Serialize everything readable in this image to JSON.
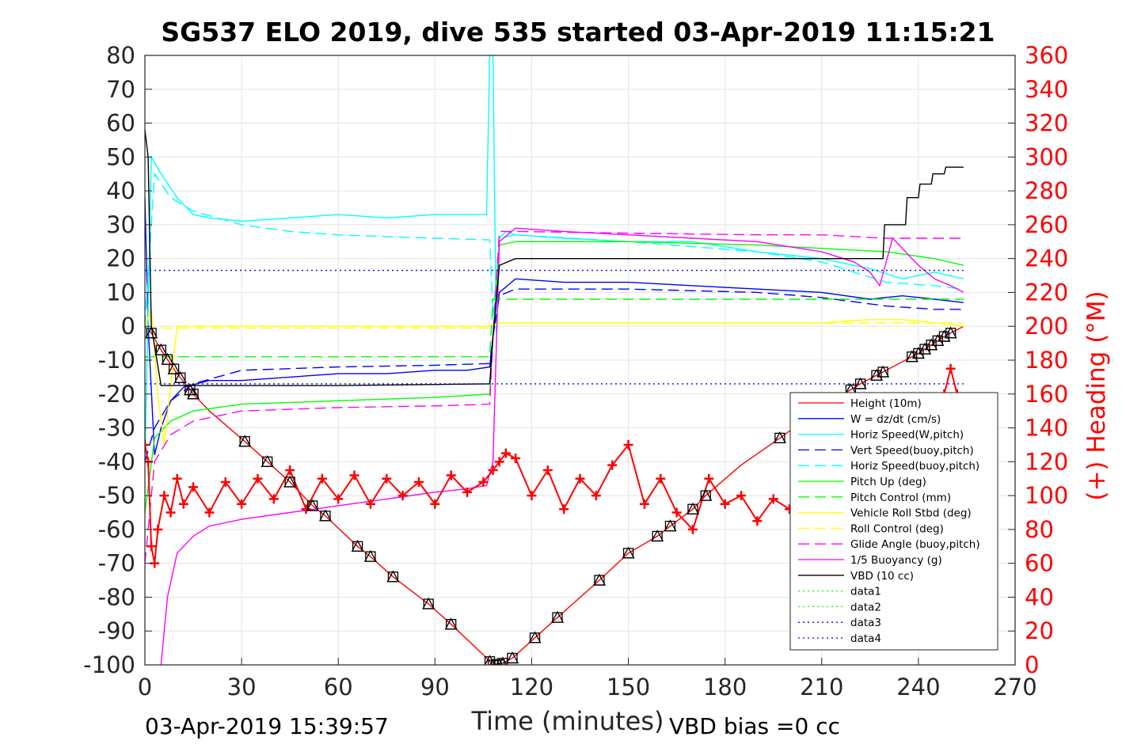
{
  "chart_data": {
    "type": "line",
    "title": "SG537 ELO 2019, dive 535 started 03-Apr-2019 11:15:21",
    "xlabel": "Time (minutes)",
    "ylabel": "",
    "ylabel_right": "(+) Heading (°M)",
    "xlim": [
      0,
      270
    ],
    "ylim": [
      -100,
      80
    ],
    "ylim_right": [
      0,
      360
    ],
    "x_ticks": [
      0,
      30,
      60,
      90,
      120,
      150,
      180,
      210,
      240,
      270
    ],
    "y_ticks": [
      80,
      70,
      60,
      50,
      40,
      30,
      20,
      10,
      0,
      -10,
      -20,
      -30,
      -40,
      -50,
      -60,
      -70,
      -80,
      -90,
      -100
    ],
    "y_ticks_right": [
      360,
      340,
      320,
      300,
      280,
      260,
      240,
      220,
      200,
      180,
      160,
      140,
      120,
      100,
      80,
      60,
      40,
      20,
      0
    ],
    "grid": true,
    "legend_position": "lower-right",
    "footer_left": "03-Apr-2019 15:39:57",
    "footer_right": "VBD bias =0 cc",
    "series": [
      {
        "name": "Height (10m)",
        "color": "#ff0000",
        "style": "solid",
        "x": [
          0,
          2,
          5,
          10,
          15,
          20,
          31,
          38,
          45,
          52,
          56,
          66,
          70,
          77,
          88,
          95,
          105,
          108,
          110,
          114,
          121,
          128,
          141,
          150,
          159,
          163,
          170,
          174,
          185,
          197,
          210,
          222,
          230,
          240,
          248,
          254
        ],
        "y": [
          0,
          -2,
          -7,
          -14,
          -20,
          -25,
          -34,
          -40,
          -46,
          -53,
          -56,
          -65,
          -68,
          -74,
          -82,
          -88,
          -97,
          -100,
          -100,
          -98,
          -92,
          -86,
          -75,
          -67,
          -62,
          -59,
          -54,
          -50,
          -41,
          -33,
          -24,
          -17,
          -13,
          -8,
          -3,
          0
        ]
      },
      {
        "name": "W = dz/dt (cm/s)",
        "color": "#0000ff",
        "style": "solid",
        "x": [
          0,
          1,
          3,
          5,
          8,
          12,
          20,
          30,
          45,
          60,
          75,
          90,
          100,
          107,
          108,
          110,
          115,
          130,
          150,
          170,
          190,
          210,
          225,
          235,
          245,
          254
        ],
        "y": [
          38,
          0,
          -38,
          -30,
          -22,
          -18,
          -16,
          -16,
          -15,
          -14,
          -14,
          -13,
          -13,
          -12,
          -3,
          10,
          14,
          13,
          13,
          12,
          11,
          10,
          8,
          9,
          8,
          7
        ]
      },
      {
        "name": "Horiz Speed(W,pitch)",
        "color": "#00ffff",
        "style": "solid",
        "x": [
          0,
          2,
          5,
          10,
          15,
          20,
          30,
          45,
          60,
          75,
          90,
          100,
          106,
          107,
          108,
          109,
          110,
          112,
          115,
          130,
          150,
          170,
          190,
          210,
          225,
          235,
          245,
          254
        ],
        "y": [
          -40,
          50,
          45,
          38,
          33,
          32,
          31,
          32,
          33,
          32,
          33,
          33,
          33,
          80,
          80,
          -2,
          26,
          28,
          27,
          26,
          25,
          25,
          22,
          20,
          17,
          14,
          16,
          14
        ]
      },
      {
        "name": "Vert Speed(buoy,pitch)",
        "color": "#0000ff",
        "style": "dash",
        "x": [
          0,
          3,
          8,
          15,
          30,
          60,
          90,
          107,
          108,
          110,
          115,
          150,
          190,
          210,
          230,
          245,
          254
        ],
        "y": [
          -40,
          -30,
          -22,
          -17,
          -13,
          -12,
          -11.5,
          -11,
          -3,
          9,
          11,
          11,
          10,
          8.5,
          6,
          5,
          5
        ]
      },
      {
        "name": "Horiz Speed(buoy,pitch)",
        "color": "#00ffff",
        "style": "dash",
        "x": [
          0,
          3,
          8,
          15,
          30,
          45,
          60,
          75,
          90,
          107,
          108,
          110,
          115,
          150,
          190,
          210,
          230,
          245,
          254
        ],
        "y": [
          0,
          45,
          38,
          34,
          30,
          28,
          27,
          26.5,
          26,
          25.5,
          3,
          26,
          27,
          25,
          22,
          19,
          13,
          12,
          11
        ]
      },
      {
        "name": "Pitch Up (deg)",
        "color": "#00ff00",
        "style": "solid",
        "x": [
          0,
          3,
          8,
          15,
          30,
          60,
          90,
          107,
          108,
          110,
          115,
          150,
          190,
          210,
          230,
          245,
          254
        ],
        "y": [
          -55,
          -33,
          -28,
          -25,
          -23,
          -22,
          -21,
          -20,
          -3,
          24,
          25,
          25,
          24,
          23,
          22,
          20,
          18
        ]
      },
      {
        "name": "Pitch Control (mm)",
        "color": "#00ff00",
        "style": "dash",
        "x": [
          0,
          5,
          30,
          60,
          90,
          107,
          108,
          110,
          150,
          200,
          254
        ],
        "y": [
          -9,
          -9,
          -9,
          -9,
          -9,
          -9,
          8,
          8,
          8,
          8,
          8
        ]
      },
      {
        "name": "Vehicle Roll Stbd (deg)",
        "color": "#ffff00",
        "style": "solid",
        "x": [
          0,
          2,
          4,
          6,
          10,
          20,
          40,
          60,
          80,
          100,
          106,
          110,
          130,
          150,
          170,
          190,
          210,
          225,
          235,
          245,
          254
        ],
        "y": [
          0,
          5,
          -20,
          -35,
          0,
          0,
          0,
          0,
          0,
          0,
          0,
          1,
          1,
          1,
          1,
          1,
          1,
          2,
          2,
          1,
          0
        ]
      },
      {
        "name": "Roll Control (deg)",
        "color": "#ffff00",
        "style": "dash",
        "x": [
          0,
          5,
          30,
          60,
          90,
          107,
          110,
          150,
          200,
          230,
          254
        ],
        "y": [
          -0.5,
          -0.5,
          -0.5,
          -0.5,
          -0.5,
          -0.5,
          1,
          1,
          1,
          1,
          1
        ]
      },
      {
        "name": "Glide Angle (buoy,pitch)",
        "color": "#ff00ff",
        "style": "dash",
        "x": [
          0,
          3,
          8,
          15,
          30,
          60,
          90,
          107,
          108,
          110,
          115,
          150,
          190,
          210,
          230,
          245,
          254
        ],
        "y": [
          -70,
          -40,
          -32,
          -28,
          -25,
          -24,
          -23.5,
          -23,
          -3,
          28,
          28,
          27.5,
          27,
          27,
          26,
          26,
          26
        ]
      },
      {
        "name": "1/5 Buoyancy (g)",
        "color": "#ff00ff",
        "style": "solid",
        "x": [
          5,
          7,
          10,
          15,
          20,
          30,
          45,
          60,
          75,
          90,
          100,
          106,
          108,
          110,
          115,
          130,
          150,
          170,
          190,
          210,
          220,
          225,
          228,
          232,
          240,
          245,
          250,
          254
        ],
        "y": [
          -100,
          -80,
          -67,
          -62,
          -59,
          -57,
          -55,
          -53,
          -51,
          -49,
          -48,
          -47,
          -40,
          25,
          29,
          28,
          27,
          26,
          25,
          22,
          19,
          16,
          12,
          26,
          18,
          14,
          12,
          10
        ]
      },
      {
        "name": "VBD (10 cc)",
        "color": "#000000",
        "style": "solid",
        "x": [
          0,
          1,
          2,
          5,
          20,
          60,
          107,
          108,
          110,
          115,
          150,
          200,
          229,
          229.5,
          236,
          236.5,
          240,
          240.5,
          244,
          244.5,
          248,
          248.5,
          254
        ],
        "y": [
          58,
          50,
          0,
          -17.5,
          -17.5,
          -17.5,
          -17,
          -3,
          18,
          20,
          20,
          20,
          20,
          30,
          30,
          38,
          38,
          42,
          42,
          45,
          45,
          47,
          47
        ]
      },
      {
        "name": "data1",
        "color": "#00ff00",
        "style": "dot",
        "x": [
          0,
          270
        ],
        "y": [
          null,
          null
        ]
      },
      {
        "name": "data2",
        "color": "#00ff00",
        "style": "dot",
        "x": [
          0,
          270
        ],
        "y": [
          null,
          null
        ]
      },
      {
        "name": "data3",
        "color": "#0000ff",
        "style": "dot",
        "x": [
          0,
          254
        ],
        "y": [
          16.5,
          16.5
        ]
      },
      {
        "name": "data4",
        "color": "#0000ff",
        "style": "dot",
        "x": [
          0,
          254
        ],
        "y": [
          -17,
          -17
        ]
      }
    ],
    "heading": {
      "axis": "right",
      "color": "#ff0000",
      "marker": "+",
      "x": [
        0,
        1,
        2,
        3,
        4,
        6,
        8,
        10,
        12,
        15,
        20,
        25,
        30,
        35,
        40,
        45,
        50,
        55,
        60,
        65,
        70,
        75,
        80,
        85,
        90,
        95,
        100,
        105,
        108,
        110,
        112,
        115,
        120,
        125,
        130,
        135,
        140,
        145,
        150,
        155,
        160,
        165,
        170,
        175,
        180,
        185,
        190,
        195,
        200,
        205,
        210,
        215,
        220,
        225,
        230,
        235,
        240,
        245,
        248,
        250,
        252,
        254
      ],
      "y": [
        130,
        120,
        70,
        60,
        80,
        100,
        90,
        110,
        95,
        105,
        90,
        108,
        95,
        110,
        98,
        115,
        92,
        110,
        98,
        112,
        95,
        110,
        100,
        108,
        95,
        112,
        102,
        108,
        115,
        120,
        125,
        122,
        100,
        115,
        92,
        110,
        100,
        118,
        130,
        95,
        110,
        90,
        80,
        110,
        95,
        100,
        85,
        98,
        92,
        105,
        110,
        95,
        100,
        108,
        102,
        110,
        115,
        120,
        160,
        175,
        160,
        150
      ]
    },
    "markers": {
      "note": "black square/triangle markers on Height (10m) line",
      "x": [
        2,
        5,
        7,
        9,
        11,
        14,
        15,
        31,
        38,
        45,
        52,
        56,
        66,
        70,
        77,
        88,
        95,
        107,
        108,
        109,
        110,
        111,
        114,
        121,
        128,
        141,
        150,
        159,
        163,
        170,
        174,
        197,
        219,
        222,
        227,
        229,
        238,
        240,
        242,
        244,
        246,
        248,
        250
      ]
    }
  }
}
